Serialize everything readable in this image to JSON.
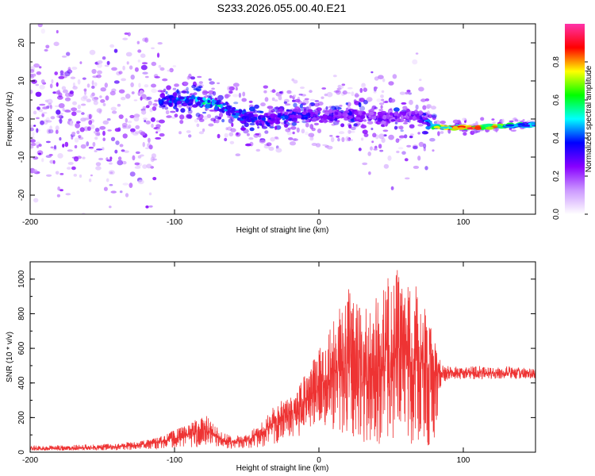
{
  "page": {
    "title": "S233.2026.055.00.40.E21"
  },
  "chart_data": [
    {
      "id": "spectrogram",
      "type": "heatmap",
      "title": "S233.2026.055.00.40.E21",
      "xlabel": "Height of straight line (km)",
      "ylabel": "Frequency (Hz)",
      "xlim": [
        -200,
        150
      ],
      "ylim": [
        -25,
        25
      ],
      "xticks": [
        -200,
        -100,
        0,
        100
      ],
      "xtick_labels": [
        "-200",
        "-100",
        "0",
        "100"
      ],
      "yticks": [
        -20,
        -10,
        0,
        10,
        20
      ],
      "ytick_labels": [
        "-20",
        "-10",
        "0",
        "10",
        "20"
      ],
      "colorbar": {
        "label": "Normalized spectral amplitude",
        "range": [
          0.0,
          1.0
        ],
        "ticks": [
          0.0,
          0.2,
          0.4,
          0.6,
          0.8
        ],
        "tick_labels": [
          "0.0",
          "0.2",
          "0.4",
          "0.6",
          "0.8"
        ],
        "colormap": [
          "#ffffff",
          "#cc99ff",
          "#8800ff",
          "#0000ff",
          "#00ffff",
          "#00ff00",
          "#ffff00",
          "#ff0000",
          "#ff33aa"
        ]
      },
      "ridge": {
        "description": "high-amplitude frequency ridge vs height",
        "x": [
          -110,
          -90,
          -80,
          -70,
          -60,
          -50,
          -40,
          -30,
          -20,
          -10,
          0,
          10,
          20,
          30,
          40,
          50,
          60,
          70,
          80,
          90,
          100,
          110,
          120,
          130,
          140,
          150
        ],
        "y": [
          5,
          5,
          4.5,
          3.5,
          2,
          0.5,
          -0.5,
          0,
          1,
          1,
          0,
          0.5,
          1.5,
          1,
          0,
          0.5,
          1,
          0.5,
          -2,
          -2.3,
          -2.3,
          -2.2,
          -2.0,
          -1.8,
          -1.6,
          -1.5
        ],
        "peak_amplitude": [
          0.45,
          0.55,
          0.6,
          0.55,
          0.5,
          0.45,
          0.45,
          0.4,
          0.45,
          0.4,
          0.35,
          0.35,
          0.35,
          0.3,
          0.3,
          0.3,
          0.3,
          0.3,
          0.7,
          0.9,
          0.95,
          0.9,
          0.85,
          0.7,
          0.6,
          0.5
        ]
      }
    },
    {
      "id": "snr",
      "type": "line",
      "title": "",
      "xlabel": "Height of straight line (km)",
      "ylabel": "SNR (10 * v/v)",
      "xlim": [
        -200,
        150
      ],
      "ylim": [
        0,
        1100
      ],
      "xticks": [
        -200,
        -100,
        0,
        100
      ],
      "xtick_labels": [
        "-200",
        "-100",
        "0",
        "100"
      ],
      "yticks": [
        0,
        200,
        400,
        600,
        800,
        1000
      ],
      "ytick_labels": [
        "0",
        "200",
        "400",
        "600",
        "800",
        "1000"
      ],
      "series": [
        {
          "name": "SNR",
          "color": "#ee3333",
          "x": [
            -200,
            -180,
            -160,
            -140,
            -120,
            -110,
            -100,
            -90,
            -80,
            -70,
            -60,
            -50,
            -40,
            -30,
            -20,
            -15,
            -10,
            -5,
            0,
            5,
            10,
            20,
            30,
            40,
            50,
            55,
            60,
            70,
            80,
            85,
            90,
            100,
            110,
            120,
            130,
            140,
            150
          ],
          "envelope_low": [
            10,
            10,
            10,
            10,
            15,
            20,
            25,
            30,
            20,
            20,
            20,
            20,
            30,
            40,
            60,
            80,
            120,
            150,
            180,
            150,
            120,
            80,
            60,
            50,
            40,
            30,
            30,
            30,
            40,
            400,
            420,
            420,
            420,
            420,
            420,
            420,
            420
          ],
          "envelope_high": [
            40,
            40,
            45,
            50,
            70,
            90,
            130,
            160,
            230,
            140,
            90,
            110,
            170,
            280,
            320,
            350,
            470,
            520,
            600,
            700,
            820,
            950,
            820,
            900,
            1040,
            1080,
            960,
            980,
            640,
            510,
            500,
            490,
            500,
            490,
            500,
            490,
            480
          ],
          "typical": [
            20,
            20,
            25,
            30,
            45,
            60,
            80,
            100,
            130,
            80,
            55,
            70,
            110,
            180,
            220,
            240,
            300,
            340,
            380,
            420,
            460,
            480,
            440,
            470,
            520,
            540,
            500,
            520,
            460,
            460,
            460,
            455,
            460,
            455,
            458,
            455,
            450
          ]
        }
      ]
    }
  ]
}
